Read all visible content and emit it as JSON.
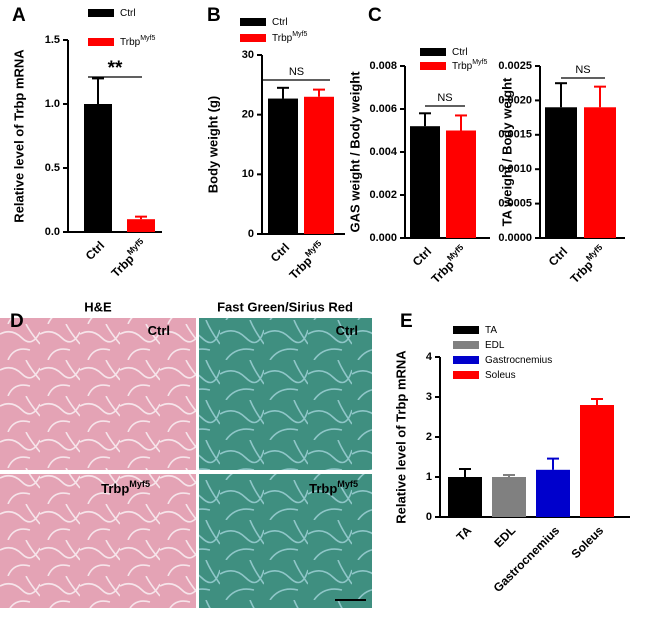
{
  "panel_labels": [
    "A",
    "B",
    "C",
    "D",
    "E"
  ],
  "chart_data": [
    {
      "type": "bar",
      "ylabel": "Relative level of Trbp mRNA",
      "categories": [
        "Ctrl",
        "Trbp"
      ],
      "category_sup": [
        null,
        "Myf5"
      ],
      "values": [
        1.0,
        0.1
      ],
      "errors": [
        0.2,
        0.02
      ],
      "colors": [
        "#000000",
        "#ff0000"
      ],
      "ylim": [
        0,
        1.5
      ],
      "yticks": [
        {
          "value": 0,
          "label": "0.0"
        },
        {
          "value": 0.5,
          "label": "0.5"
        },
        {
          "value": 1,
          "label": "1.0"
        },
        {
          "value": 1.5,
          "label": "1.5"
        }
      ],
      "legend": true,
      "annotation": "**"
    },
    {
      "type": "bar",
      "ylabel": "Body weight (g)",
      "categories": [
        "Ctrl",
        "Trbp"
      ],
      "category_sup": [
        null,
        "Myf5"
      ],
      "values": [
        22.7,
        23.0
      ],
      "errors": [
        1.8,
        1.2
      ],
      "colors": [
        "#000000",
        "#ff0000"
      ],
      "ylim": [
        0,
        30
      ],
      "yticks": [
        0,
        10,
        20,
        30
      ],
      "legend": true,
      "annotation": "NS"
    },
    {
      "type": "bar",
      "ylabel": "GAS weight / Body weight",
      "categories": [
        "Ctrl",
        "Trbp"
      ],
      "category_sup": [
        null,
        "Myf5"
      ],
      "values": [
        0.0052,
        0.005
      ],
      "errors": [
        0.0006,
        0.0007
      ],
      "colors": [
        "#000000",
        "#ff0000"
      ],
      "ylim": [
        0,
        0.008
      ],
      "yticks": [
        {
          "value": 0,
          "label": "0.000"
        },
        {
          "value": 0.002,
          "label": "0.002"
        },
        {
          "value": 0.004,
          "label": "0.004"
        },
        {
          "value": 0.006,
          "label": "0.006"
        },
        {
          "value": 0.008,
          "label": "0.008"
        }
      ],
      "legend": true,
      "annotation": "NS"
    },
    {
      "type": "bar",
      "ylabel": "TA weight / Body weight",
      "categories": [
        "Ctrl",
        "Trbp"
      ],
      "category_sup": [
        null,
        "Myf5"
      ],
      "values": [
        0.0019,
        0.0019
      ],
      "errors": [
        0.00035,
        0.0003
      ],
      "colors": [
        "#000000",
        "#ff0000"
      ],
      "ylim": [
        0,
        0.0025
      ],
      "yticks": [
        {
          "value": 0,
          "label": "0.0000"
        },
        {
          "value": 0.0005,
          "label": "0.0005"
        },
        {
          "value": 0.001,
          "label": "0.0010"
        },
        {
          "value": 0.0015,
          "label": "0.0015"
        },
        {
          "value": 0.002,
          "label": "0.0020"
        },
        {
          "value": 0.0025,
          "label": "0.0025"
        }
      ],
      "legend": false,
      "annotation": "NS"
    },
    {
      "type": "bar",
      "ylabel": "Relative level of Trbp mRNA",
      "categories": [
        "TA",
        "EDL",
        "Gastrocnemius",
        "Soleus"
      ],
      "category_sup": [
        null,
        null,
        null,
        null
      ],
      "values": [
        1.0,
        1.0,
        1.18,
        2.8
      ],
      "errors": [
        0.2,
        0.05,
        0.28,
        0.15
      ],
      "colors": [
        "#000000",
        "#808080",
        "#0000cc",
        "#ff0000"
      ],
      "ylim": [
        0,
        4
      ],
      "yticks": [
        0,
        1,
        2,
        3,
        4
      ],
      "legend": true
    }
  ],
  "histology": {
    "columns": [
      "H&E",
      "Fast Green/Sirius Red"
    ],
    "row_labels": [
      "Ctrl",
      "Trbp"
    ],
    "row_label_sup": [
      null,
      "Myf5"
    ]
  }
}
